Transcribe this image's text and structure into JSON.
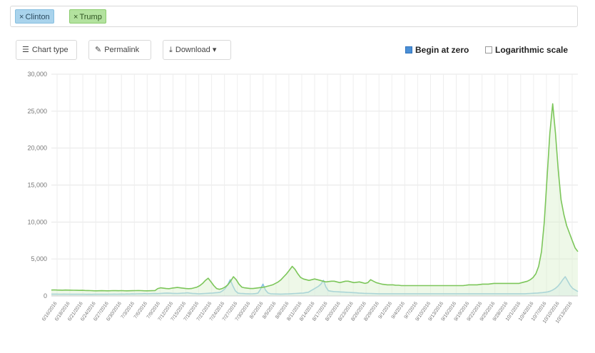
{
  "filters": [
    {
      "label": "Clinton",
      "color": "#a9d3ec"
    },
    {
      "label": "Trump",
      "color": "#b3e29f"
    }
  ],
  "toolbar": {
    "chart_type_label": "Chart type",
    "permalink_label": "Permalink",
    "download_label": "Download",
    "begin_at_zero_label": "Begin at zero",
    "begin_at_zero_checked": true,
    "log_scale_label": "Logarithmic scale",
    "log_scale_checked": false
  },
  "icons": {
    "chart_type": "bar-chart-icon",
    "permalink": "pencil-icon",
    "download": "download-icon"
  },
  "chart_data": {
    "type": "line",
    "ylim": [
      0,
      30000
    ],
    "yticks": [
      0,
      5000,
      10000,
      15000,
      20000,
      25000,
      30000
    ],
    "ytick_labels": [
      "0",
      "5,000",
      "10,000",
      "15,000",
      "20,000",
      "25,000",
      "30,000"
    ],
    "xticks": [
      "6/16/2016",
      "6/18/2016",
      "6/21/2016",
      "6/24/2016",
      "6/27/2016",
      "6/30/2016",
      "7/3/2016",
      "7/6/2016",
      "7/9/2016",
      "7/12/2016",
      "7/15/2016",
      "7/18/2016",
      "7/21/2016",
      "7/24/2016",
      "7/27/2016",
      "7/30/2016",
      "8/2/2016",
      "8/5/2016",
      "8/8/2016",
      "8/11/2016",
      "8/14/2016",
      "8/17/2016",
      "8/20/2016",
      "8/23/2016",
      "8/26/2016",
      "8/29/2016",
      "9/1/2016",
      "9/4/2016",
      "9/7/2016",
      "9/10/2016",
      "9/13/2016",
      "9/16/2016",
      "9/19/2016",
      "9/22/2016",
      "9/25/2016",
      "9/28/2016",
      "10/1/2016",
      "10/4/2016",
      "10/7/2016",
      "10/10/2016",
      "10/13/2016"
    ],
    "grid": true,
    "legend": "none",
    "series": [
      {
        "name": "Clinton",
        "color": "#86bfe0",
        "fill": "#d6eaf6",
        "values": [
          250,
          250,
          250,
          240,
          240,
          250,
          240,
          240,
          230,
          230,
          230,
          240,
          230,
          230,
          220,
          230,
          220,
          230,
          230,
          230,
          230,
          230,
          230,
          240,
          240,
          250,
          240,
          250,
          260,
          250,
          270,
          260,
          280,
          270,
          290,
          300,
          300,
          320,
          300,
          310,
          320,
          330,
          320,
          340,
          360,
          380,
          400,
          380,
          360,
          350,
          340,
          360,
          380,
          400,
          420,
          380,
          350,
          330,
          310,
          300,
          320,
          340,
          360,
          380,
          400,
          420,
          450,
          500,
          700,
          1000,
          1500,
          2200,
          1400,
          700,
          400,
          350,
          330,
          310,
          300,
          290,
          300,
          320,
          380,
          900,
          1600,
          800,
          400,
          300,
          280,
          270,
          260,
          250,
          260,
          270,
          280,
          300,
          320,
          340,
          360,
          380,
          400,
          450,
          500,
          700,
          900,
          1100,
          1300,
          1600,
          2100,
          1200,
          700,
          650,
          600,
          580,
          560,
          540,
          520,
          500,
          480,
          460,
          440,
          420,
          400,
          380,
          360,
          350,
          340,
          330,
          320,
          310,
          300,
          300,
          300,
          300,
          300,
          300,
          300,
          300,
          300,
          300,
          300,
          300,
          300,
          300,
          300,
          300,
          300,
          300,
          300,
          300,
          300,
          300,
          300,
          300,
          300,
          300,
          300,
          300,
          300,
          300,
          300,
          300,
          300,
          300,
          300,
          300,
          300,
          300,
          300,
          300,
          300,
          300,
          300,
          300,
          300,
          300,
          300,
          300,
          300,
          300,
          300,
          300,
          300,
          300,
          300,
          300,
          300,
          300,
          300,
          320,
          340,
          360,
          380,
          400,
          420,
          450,
          500,
          550,
          650,
          800,
          1000,
          1300,
          1700,
          2200,
          2600,
          2000,
          1400,
          1000,
          800,
          600
        ]
      },
      {
        "name": "Trump",
        "color": "#7cc65a",
        "fill": "#d9efcc",
        "values": [
          800,
          820,
          800,
          790,
          780,
          800,
          790,
          780,
          770,
          760,
          750,
          760,
          740,
          730,
          720,
          700,
          690,
          700,
          710,
          700,
          690,
          700,
          720,
          710,
          700,
          720,
          700,
          690,
          700,
          710,
          720,
          730,
          720,
          700,
          690,
          700,
          710,
          720,
          1000,
          1100,
          1050,
          1000,
          980,
          1050,
          1100,
          1150,
          1100,
          1050,
          1000,
          980,
          1000,
          1100,
          1200,
          1400,
          1700,
          2100,
          2400,
          1900,
          1400,
          1000,
          900,
          1000,
          1200,
          1500,
          2000,
          2600,
          2200,
          1600,
          1200,
          1100,
          1050,
          1000,
          1000,
          1050,
          1100,
          1150,
          1200,
          1300,
          1400,
          1500,
          1700,
          1900,
          2200,
          2600,
          3000,
          3500,
          4000,
          3600,
          3000,
          2500,
          2300,
          2200,
          2100,
          2200,
          2300,
          2200,
          2100,
          2000,
          1900,
          1950,
          2000,
          2000,
          1900,
          1800,
          1900,
          2000,
          2000,
          1900,
          1800,
          1850,
          1900,
          1800,
          1700,
          1800,
          2200,
          2000,
          1800,
          1700,
          1600,
          1550,
          1500,
          1500,
          1500,
          1450,
          1450,
          1400,
          1400,
          1400,
          1400,
          1400,
          1400,
          1400,
          1400,
          1400,
          1400,
          1400,
          1400,
          1400,
          1400,
          1400,
          1400,
          1400,
          1400,
          1400,
          1400,
          1400,
          1400,
          1400,
          1450,
          1500,
          1500,
          1500,
          1500,
          1550,
          1600,
          1600,
          1600,
          1650,
          1700,
          1700,
          1700,
          1700,
          1700,
          1700,
          1700,
          1700,
          1700,
          1700,
          1800,
          1900,
          2000,
          2200,
          2500,
          3000,
          4000,
          6000,
          10000,
          16000,
          22000,
          26000,
          22000,
          17000,
          13000,
          11000,
          9500,
          8500,
          7500,
          6500,
          6000
        ]
      }
    ]
  }
}
